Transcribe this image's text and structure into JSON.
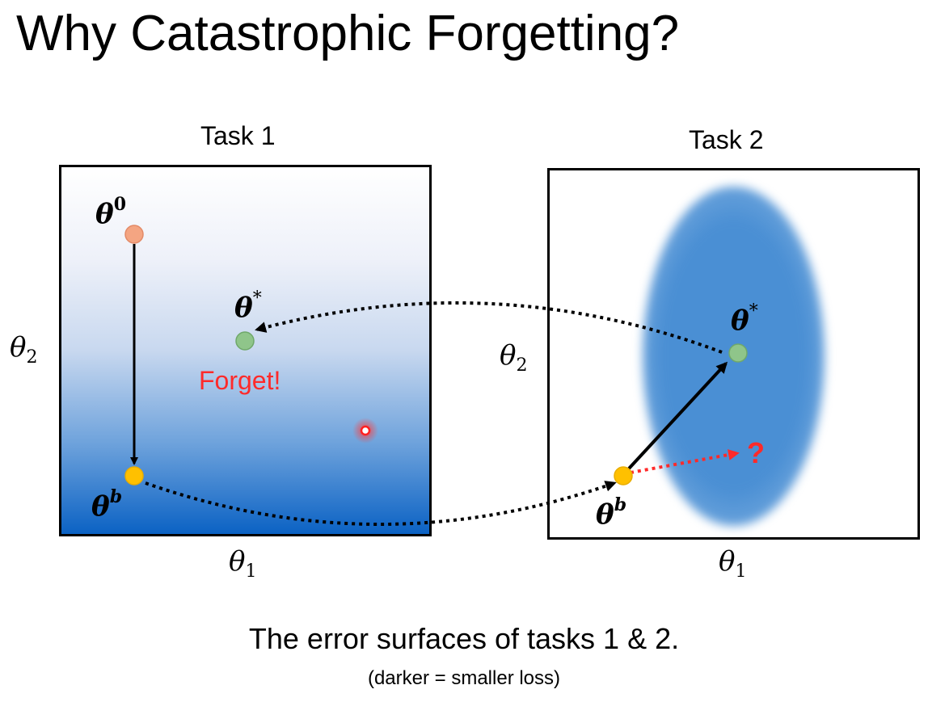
{
  "title": "Why Catastrophic Forgetting?",
  "panels": {
    "task1": {
      "label": "Task 1",
      "xlabel_sym": "θ",
      "xlabel_sub": "1",
      "ylabel_sym": "θ",
      "ylabel_sub": "2",
      "points": {
        "theta0": {
          "sym": "θ",
          "sup": "0"
        },
        "thetab": {
          "sym": "θ",
          "sup": "b"
        },
        "thetastar": {
          "sym": "θ",
          "sup": "*"
        }
      },
      "forget_text": "Forget!"
    },
    "task2": {
      "label": "Task 2",
      "xlabel_sym": "θ",
      "xlabel_sub": "1",
      "ylabel_sym": "θ",
      "ylabel_sub": "2",
      "points": {
        "thetab": {
          "sym": "θ",
          "sup": "b"
        },
        "thetastar": {
          "sym": "θ",
          "sup": "*"
        }
      },
      "question_mark": "?"
    }
  },
  "caption": {
    "main": "The error surfaces of tasks 1 & 2.",
    "sub": "(darker = smaller loss)"
  },
  "colors": {
    "theta0_point": "#f4a582",
    "thetab_point": "#ffc000",
    "thetastar_point": "#8fc58a",
    "forget_text": "#ff2a2a",
    "question_mark": "#ff2a2a",
    "task2_basin": "#4a8fd4",
    "task1_dark": "#0b62c4"
  }
}
